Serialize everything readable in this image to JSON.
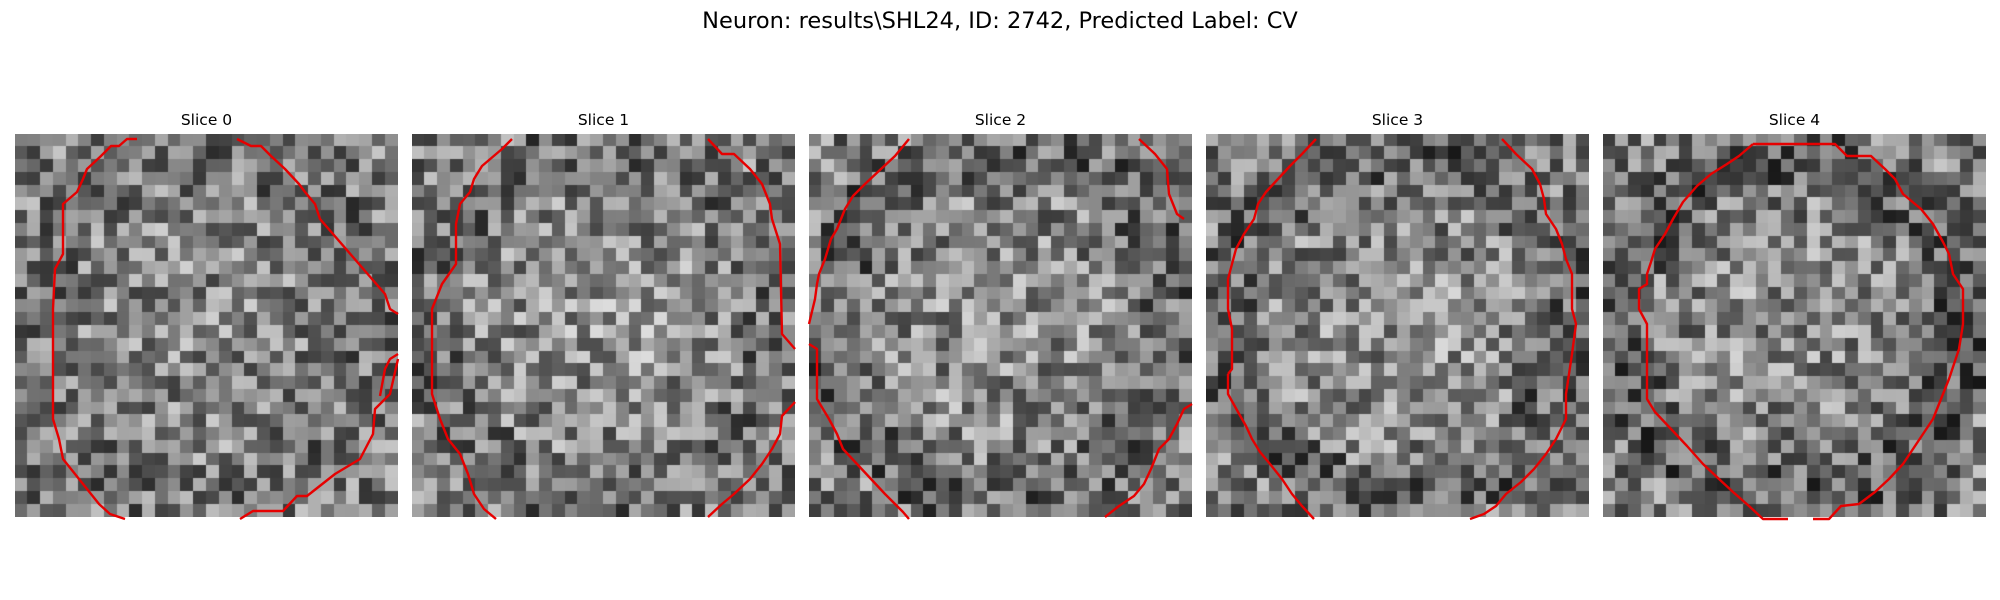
{
  "figure": {
    "title": "Neuron: results\\SHL24, ID: 2742, Predicted Label: CV",
    "colors": {
      "contour": "#e60000",
      "background": "#ffffff"
    }
  },
  "panels": [
    {
      "title": "Slice 0"
    },
    {
      "title": "Slice 1"
    },
    {
      "title": "Slice 2"
    },
    {
      "title": "Slice 3"
    },
    {
      "title": "Slice 4"
    }
  ]
}
